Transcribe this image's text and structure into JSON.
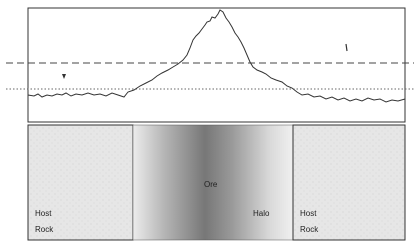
{
  "regions": [
    {
      "lines": [
        "Host",
        "Rock"
      ]
    },
    {
      "lines": [
        "Ore"
      ]
    },
    {
      "lines": [
        "Halo"
      ]
    },
    {
      "lines": [
        "Host",
        "Rock"
      ]
    }
  ]
}
